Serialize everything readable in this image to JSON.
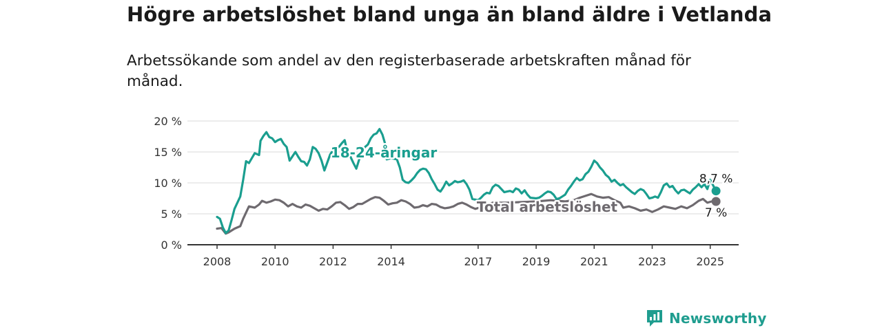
{
  "header": {
    "title": "Högre arbetslöshet bland unga än bland äldre i Vetlanda",
    "subtitle": "Arbetssökande som andel av den registerbaserade arbetskraften månad för månad."
  },
  "brand": {
    "name": "Newsworthy",
    "icon": "newsworthy-logo-icon",
    "color": "#1f9d8f"
  },
  "chart_data": {
    "type": "line",
    "x_unit": "year",
    "y_unit": "%",
    "xlim": [
      2007.5,
      2026.1
    ],
    "ylim": [
      0,
      20
    ],
    "y_ticks": [
      0,
      5,
      10,
      15,
      20
    ],
    "y_tick_labels": [
      "0 %",
      "5 %",
      "10 %",
      "15 %",
      "20 %"
    ],
    "x_ticks": [
      2008,
      2010,
      2012,
      2014,
      2017,
      2019,
      2021,
      2023,
      2025
    ],
    "x_tick_labels": [
      "2008",
      "2010",
      "2012",
      "2014",
      "2017",
      "2019",
      "2021",
      "2023",
      "2025"
    ],
    "grid": true,
    "legend": "inline labels",
    "series": [
      {
        "name": "18-24-åringar",
        "color": "#1a9e8f",
        "end_label": "8,7 %",
        "points": [
          [
            2008.0,
            4.5
          ],
          [
            2008.1,
            4.2
          ],
          [
            2008.2,
            2.8
          ],
          [
            2008.3,
            1.9
          ],
          [
            2008.4,
            2.3
          ],
          [
            2008.5,
            4.0
          ],
          [
            2008.6,
            5.8
          ],
          [
            2008.8,
            7.8
          ],
          [
            2008.9,
            10.5
          ],
          [
            2009.0,
            13.5
          ],
          [
            2009.1,
            13.2
          ],
          [
            2009.2,
            14.0
          ],
          [
            2009.3,
            14.8
          ],
          [
            2009.45,
            14.5
          ],
          [
            2009.5,
            16.8
          ],
          [
            2009.6,
            17.6
          ],
          [
            2009.7,
            18.2
          ],
          [
            2009.8,
            17.4
          ],
          [
            2009.9,
            17.2
          ],
          [
            2010.0,
            16.6
          ],
          [
            2010.1,
            16.9
          ],
          [
            2010.2,
            17.1
          ],
          [
            2010.3,
            16.3
          ],
          [
            2010.4,
            15.8
          ],
          [
            2010.5,
            13.6
          ],
          [
            2010.6,
            14.3
          ],
          [
            2010.7,
            15.0
          ],
          [
            2010.8,
            14.2
          ],
          [
            2010.9,
            13.5
          ],
          [
            2011.0,
            13.4
          ],
          [
            2011.1,
            12.8
          ],
          [
            2011.2,
            13.8
          ],
          [
            2011.3,
            15.8
          ],
          [
            2011.4,
            15.5
          ],
          [
            2011.5,
            14.8
          ],
          [
            2011.6,
            13.6
          ],
          [
            2011.7,
            12.0
          ],
          [
            2011.8,
            13.3
          ],
          [
            2011.9,
            14.6
          ],
          [
            2012.0,
            15.3
          ],
          [
            2012.1,
            15.6
          ],
          [
            2012.2,
            15.8
          ],
          [
            2012.3,
            16.4
          ],
          [
            2012.4,
            16.9
          ],
          [
            2012.5,
            14.8
          ],
          [
            2012.6,
            14.2
          ],
          [
            2012.7,
            13.2
          ],
          [
            2012.8,
            12.3
          ],
          [
            2012.9,
            13.8
          ],
          [
            2013.0,
            15.1
          ],
          [
            2013.1,
            15.8
          ],
          [
            2013.2,
            16.2
          ],
          [
            2013.3,
            17.2
          ],
          [
            2013.4,
            17.8
          ],
          [
            2013.5,
            18.0
          ],
          [
            2013.6,
            18.7
          ],
          [
            2013.7,
            17.8
          ],
          [
            2013.8,
            16.2
          ],
          [
            2013.85,
            13.8
          ],
          [
            2014.0,
            14.0
          ],
          [
            2014.2,
            13.8
          ],
          [
            2014.3,
            12.5
          ],
          [
            2014.4,
            10.5
          ],
          [
            2014.5,
            10.1
          ],
          [
            2014.6,
            10.0
          ],
          [
            2014.7,
            10.4
          ],
          [
            2014.8,
            10.9
          ],
          [
            2014.9,
            11.6
          ],
          [
            2015.0,
            12.1
          ],
          [
            2015.1,
            12.3
          ],
          [
            2015.2,
            12.2
          ],
          [
            2015.3,
            11.6
          ],
          [
            2015.4,
            10.6
          ],
          [
            2015.5,
            9.8
          ],
          [
            2015.6,
            8.9
          ],
          [
            2015.7,
            8.6
          ],
          [
            2015.8,
            9.3
          ],
          [
            2015.9,
            10.2
          ],
          [
            2016.0,
            9.6
          ],
          [
            2016.1,
            9.9
          ],
          [
            2016.2,
            10.3
          ],
          [
            2016.3,
            10.1
          ],
          [
            2016.4,
            10.2
          ],
          [
            2016.5,
            10.4
          ],
          [
            2016.6,
            9.8
          ],
          [
            2016.7,
            8.9
          ],
          [
            2016.8,
            7.4
          ],
          [
            2016.9,
            7.3
          ],
          [
            2017.0,
            7.2
          ],
          [
            2017.1,
            7.6
          ],
          [
            2017.2,
            8.1
          ],
          [
            2017.3,
            8.4
          ],
          [
            2017.4,
            8.3
          ],
          [
            2017.5,
            9.3
          ],
          [
            2017.6,
            9.7
          ],
          [
            2017.7,
            9.5
          ],
          [
            2017.8,
            9.0
          ],
          [
            2017.9,
            8.5
          ],
          [
            2018.0,
            8.6
          ],
          [
            2018.1,
            8.7
          ],
          [
            2018.2,
            8.5
          ],
          [
            2018.3,
            9.1
          ],
          [
            2018.4,
            8.9
          ],
          [
            2018.5,
            8.3
          ],
          [
            2018.6,
            8.8
          ],
          [
            2018.7,
            8.1
          ],
          [
            2018.8,
            7.6
          ],
          [
            2019.0,
            7.5
          ],
          [
            2019.1,
            7.6
          ],
          [
            2019.2,
            7.9
          ],
          [
            2019.3,
            8.3
          ],
          [
            2019.4,
            8.6
          ],
          [
            2019.5,
            8.5
          ],
          [
            2019.6,
            8.1
          ],
          [
            2019.7,
            7.4
          ],
          [
            2019.8,
            7.5
          ],
          [
            2019.9,
            7.8
          ],
          [
            2020.0,
            8.1
          ],
          [
            2020.1,
            8.9
          ],
          [
            2020.2,
            9.5
          ],
          [
            2020.3,
            10.2
          ],
          [
            2020.4,
            10.8
          ],
          [
            2020.5,
            10.4
          ],
          [
            2020.6,
            10.6
          ],
          [
            2020.7,
            11.4
          ],
          [
            2020.8,
            11.8
          ],
          [
            2020.9,
            12.6
          ],
          [
            2021.0,
            13.6
          ],
          [
            2021.1,
            13.2
          ],
          [
            2021.2,
            12.5
          ],
          [
            2021.3,
            12.0
          ],
          [
            2021.4,
            11.3
          ],
          [
            2021.5,
            10.9
          ],
          [
            2021.6,
            10.2
          ],
          [
            2021.7,
            10.5
          ],
          [
            2021.8,
            10.0
          ],
          [
            2021.9,
            9.6
          ],
          [
            2022.0,
            9.8
          ],
          [
            2022.1,
            9.3
          ],
          [
            2022.2,
            8.9
          ],
          [
            2022.3,
            8.5
          ],
          [
            2022.4,
            8.2
          ],
          [
            2022.5,
            8.7
          ],
          [
            2022.6,
            9.0
          ],
          [
            2022.7,
            8.8
          ],
          [
            2022.8,
            8.2
          ],
          [
            2022.9,
            7.5
          ],
          [
            2023.0,
            7.6
          ],
          [
            2023.1,
            7.8
          ],
          [
            2023.2,
            7.6
          ],
          [
            2023.3,
            8.5
          ],
          [
            2023.4,
            9.6
          ],
          [
            2023.5,
            9.9
          ],
          [
            2023.6,
            9.3
          ],
          [
            2023.7,
            9.5
          ],
          [
            2023.8,
            8.8
          ],
          [
            2023.9,
            8.3
          ],
          [
            2024.0,
            8.8
          ],
          [
            2024.1,
            8.9
          ],
          [
            2024.2,
            8.6
          ],
          [
            2024.3,
            8.3
          ],
          [
            2024.4,
            8.9
          ],
          [
            2024.5,
            9.3
          ],
          [
            2024.6,
            9.8
          ],
          [
            2024.7,
            9.3
          ],
          [
            2024.8,
            9.8
          ],
          [
            2024.9,
            9.0
          ],
          [
            2025.0,
            10.5
          ],
          [
            2025.2,
            8.7
          ]
        ]
      },
      {
        "name": "Total arbetslöshet",
        "color": "#6e6a6f",
        "end_label": "7 %",
        "points": [
          [
            2008.0,
            2.6
          ],
          [
            2008.15,
            2.7
          ],
          [
            2008.3,
            1.8
          ],
          [
            2008.4,
            2.0
          ],
          [
            2008.6,
            2.6
          ],
          [
            2008.8,
            3.0
          ],
          [
            2008.9,
            4.2
          ],
          [
            2009.0,
            5.2
          ],
          [
            2009.1,
            6.2
          ],
          [
            2009.3,
            6.0
          ],
          [
            2009.45,
            6.5
          ],
          [
            2009.55,
            7.1
          ],
          [
            2009.7,
            6.8
          ],
          [
            2009.85,
            7.0
          ],
          [
            2010.0,
            7.3
          ],
          [
            2010.15,
            7.2
          ],
          [
            2010.3,
            6.8
          ],
          [
            2010.45,
            6.2
          ],
          [
            2010.6,
            6.6
          ],
          [
            2010.75,
            6.2
          ],
          [
            2010.9,
            6.0
          ],
          [
            2011.05,
            6.5
          ],
          [
            2011.2,
            6.3
          ],
          [
            2011.35,
            5.9
          ],
          [
            2011.5,
            5.5
          ],
          [
            2011.65,
            5.8
          ],
          [
            2011.8,
            5.7
          ],
          [
            2011.95,
            6.2
          ],
          [
            2012.1,
            6.8
          ],
          [
            2012.25,
            6.9
          ],
          [
            2012.4,
            6.4
          ],
          [
            2012.55,
            5.8
          ],
          [
            2012.7,
            6.1
          ],
          [
            2012.85,
            6.6
          ],
          [
            2013.0,
            6.6
          ],
          [
            2013.15,
            7.0
          ],
          [
            2013.3,
            7.4
          ],
          [
            2013.45,
            7.7
          ],
          [
            2013.6,
            7.6
          ],
          [
            2013.75,
            7.1
          ],
          [
            2013.9,
            6.5
          ],
          [
            2014.05,
            6.7
          ],
          [
            2014.2,
            6.8
          ],
          [
            2014.35,
            7.2
          ],
          [
            2014.5,
            7.0
          ],
          [
            2014.65,
            6.6
          ],
          [
            2014.8,
            6.0
          ],
          [
            2014.95,
            6.1
          ],
          [
            2015.1,
            6.4
          ],
          [
            2015.25,
            6.2
          ],
          [
            2015.4,
            6.6
          ],
          [
            2015.55,
            6.5
          ],
          [
            2015.7,
            6.1
          ],
          [
            2015.85,
            5.9
          ],
          [
            2016.0,
            6.0
          ],
          [
            2016.15,
            6.2
          ],
          [
            2016.3,
            6.6
          ],
          [
            2016.45,
            6.8
          ],
          [
            2016.6,
            6.5
          ],
          [
            2016.75,
            6.1
          ],
          [
            2016.9,
            5.8
          ],
          [
            2017.05,
            6.0
          ],
          [
            2017.2,
            6.3
          ],
          [
            2017.35,
            6.5
          ],
          [
            2017.5,
            6.8
          ],
          [
            2018.0,
            6.8
          ],
          [
            2019.0,
            7.0
          ],
          [
            2019.5,
            7.2
          ],
          [
            2020.0,
            7.0
          ],
          [
            2020.3,
            7.2
          ],
          [
            2020.5,
            7.6
          ],
          [
            2020.7,
            7.9
          ],
          [
            2020.9,
            8.2
          ],
          [
            2021.1,
            7.8
          ],
          [
            2021.3,
            7.6
          ],
          [
            2021.5,
            7.7
          ],
          [
            2021.7,
            7.2
          ],
          [
            2021.9,
            6.8
          ],
          [
            2022.0,
            6.0
          ],
          [
            2022.2,
            6.2
          ],
          [
            2022.4,
            5.9
          ],
          [
            2022.6,
            5.5
          ],
          [
            2022.8,
            5.7
          ],
          [
            2023.0,
            5.3
          ],
          [
            2023.2,
            5.7
          ],
          [
            2023.4,
            6.2
          ],
          [
            2023.6,
            6.0
          ],
          [
            2023.8,
            5.8
          ],
          [
            2024.0,
            6.2
          ],
          [
            2024.2,
            5.9
          ],
          [
            2024.4,
            6.4
          ],
          [
            2024.6,
            7.1
          ],
          [
            2024.75,
            7.4
          ],
          [
            2024.9,
            6.8
          ],
          [
            2025.05,
            7.0
          ],
          [
            2025.2,
            7.0
          ]
        ]
      }
    ]
  }
}
